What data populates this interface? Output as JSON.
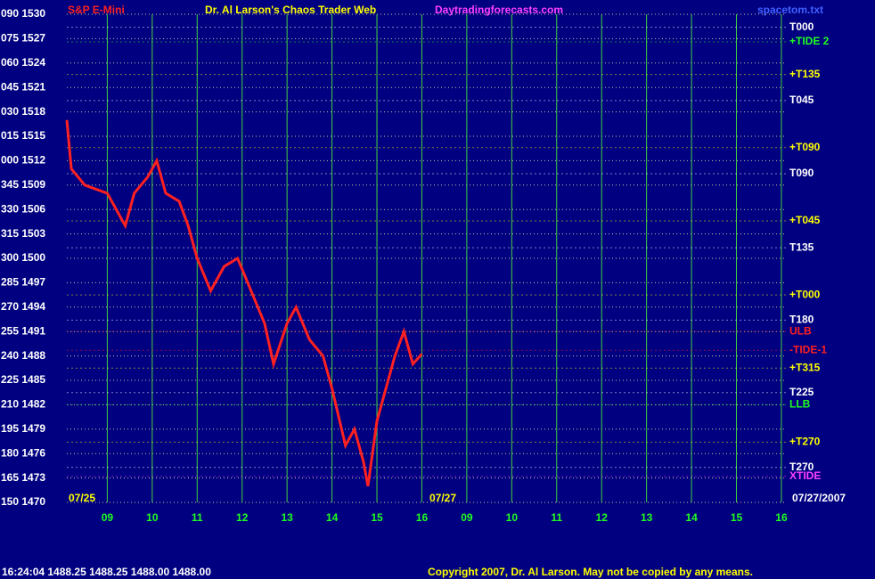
{
  "chart_data": {
    "type": "line",
    "subtitle": "S&P E-Mini",
    "title": "Dr. Al Larson's Chaos Trader Web",
    "source": "Daytradingforecasts.com",
    "file": "spacetom.txt",
    "dates": [
      "07/25",
      "07/27",
      "07/27/2007"
    ],
    "x": [
      8.1,
      8.2,
      8.5,
      9.0,
      9.4,
      9.6,
      9.9,
      10.1,
      10.3,
      10.6,
      10.8,
      11.0,
      11.3,
      11.6,
      11.9,
      12.2,
      12.5,
      12.7,
      13.0,
      13.2,
      13.5,
      13.8,
      14.0,
      14.3,
      14.5,
      14.7,
      14.8,
      15.0,
      15.2,
      15.4,
      15.6,
      15.8,
      16.0
    ],
    "series": [
      {
        "color": "#ff2020",
        "values": [
          1517,
          1511,
          1509,
          1508,
          1504,
          1508,
          1510,
          1512,
          1508,
          1507,
          1504,
          1500,
          1496,
          1499,
          1500,
          1496,
          1492,
          1487,
          1492,
          1494,
          1490,
          1488,
          1484,
          1477,
          1479,
          1475,
          1472,
          1480,
          1484,
          1488,
          1491,
          1487,
          1488.25
        ]
      }
    ],
    "xlim": [
      8.1,
      24.1
    ],
    "xticks": [
      {
        "value": 9,
        "label": "09"
      },
      10,
      11,
      12,
      13,
      14,
      15,
      16,
      {
        "value": 17,
        "label": "09"
      },
      {
        "value": 18,
        "label": "10"
      },
      {
        "value": 19,
        "label": "11"
      },
      {
        "value": 20,
        "label": "12"
      },
      {
        "value": 21,
        "label": "13"
      },
      {
        "value": 22,
        "label": "14"
      },
      {
        "value": 23,
        "label": "15"
      },
      {
        "value": 24,
        "label": "16"
      }
    ],
    "ylim": [
      1470,
      1530
    ],
    "yticks": [
      {
        "value": 1530,
        "label": "090 1530"
      },
      {
        "value": 1527,
        "label": "075 1527"
      },
      {
        "value": 1524,
        "label": "060 1524"
      },
      {
        "value": 1521,
        "label": "045 1521"
      },
      {
        "value": 1518,
        "label": "030 1518"
      },
      {
        "value": 1515,
        "label": "015 1515"
      },
      {
        "value": 1512,
        "label": "000 1512"
      },
      {
        "value": 1509,
        "label": "345 1509"
      },
      {
        "value": 1506,
        "label": "330 1506"
      },
      {
        "value": 1503,
        "label": "315 1503"
      },
      {
        "value": 1500,
        "label": "300 1500"
      },
      {
        "value": 1497,
        "label": "285 1497"
      },
      {
        "value": 1494,
        "label": "270 1494"
      },
      {
        "value": 1491,
        "label": "255 1491"
      },
      {
        "value": 1488,
        "label": "240 1488"
      },
      {
        "value": 1485,
        "label": "225 1485"
      },
      {
        "value": 1482,
        "label": "210 1482"
      },
      {
        "value": 1479,
        "label": "195 1479"
      },
      {
        "value": 1476,
        "label": "180 1476"
      },
      {
        "value": 1473,
        "label": "165 1473"
      },
      {
        "value": 1470,
        "label": "150 1470"
      }
    ],
    "grid": true,
    "levels": [
      {
        "text": "T000",
        "value": 1528.4,
        "color": "#ffffff"
      },
      {
        "text": "+TIDE 2",
        "value": 1526.6,
        "color": "#20ff20"
      },
      {
        "text": "+T135",
        "value": 1522.6,
        "color": "#ffff00"
      },
      {
        "text": "T045",
        "value": 1519.4,
        "color": "#ffffff"
      },
      {
        "text": "+T090",
        "value": 1513.6,
        "color": "#ffff00"
      },
      {
        "text": "T090",
        "value": 1510.4,
        "color": "#ffffff"
      },
      {
        "text": "+T045",
        "value": 1504.6,
        "color": "#ffff00"
      },
      {
        "text": "T135",
        "value": 1501.3,
        "color": "#ffffff"
      },
      {
        "text": "+T000",
        "value": 1495.5,
        "color": "#ffff00"
      },
      {
        "text": "T180",
        "value": 1492.4,
        "color": "#ffffff"
      },
      {
        "text": "ULB",
        "value": 1491,
        "color": "#ff2020"
      },
      {
        "text": "-TIDE-1",
        "value": 1488.7,
        "color": "#ff2020"
      },
      {
        "text": "+T315",
        "value": 1486.5,
        "color": "#ffff00"
      },
      {
        "text": "T225",
        "value": 1483.5,
        "color": "#ffffff"
      },
      {
        "text": "LLB",
        "value": 1482,
        "color": "#20ff20"
      },
      {
        "text": "+T270",
        "value": 1477.4,
        "color": "#ffff00"
      },
      {
        "text": "T270",
        "value": 1474.3,
        "color": "#ffffff"
      },
      {
        "text": "XTIDE",
        "value": 1473.2,
        "color": "#ff40ff"
      }
    ]
  },
  "status": "16:24:04  1488.25 1488.25 1488.00 1488.00",
  "copyright": "Copyright 2007, Dr. Al Larson. May not be copied by any means."
}
